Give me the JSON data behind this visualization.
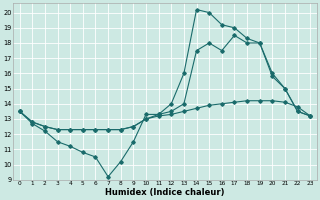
{
  "xlabel": "Humidex (Indice chaleur)",
  "xlim": [
    -0.5,
    23.5
  ],
  "ylim": [
    9,
    20.6
  ],
  "yticks": [
    9,
    10,
    11,
    12,
    13,
    14,
    15,
    16,
    17,
    18,
    19,
    20
  ],
  "xticks": [
    0,
    1,
    2,
    3,
    4,
    5,
    6,
    7,
    8,
    9,
    10,
    11,
    12,
    13,
    14,
    15,
    16,
    17,
    18,
    19,
    20,
    21,
    22,
    23
  ],
  "background_color": "#cde9e3",
  "grid_color": "#ffffff",
  "line_color": "#1a6b6b",
  "line1_x": [
    0,
    1,
    2,
    3,
    4,
    5,
    6,
    7,
    8,
    9,
    10,
    11,
    12,
    13,
    14,
    15,
    16,
    17,
    18,
    19,
    20,
    21,
    22,
    23
  ],
  "line1_y": [
    13.5,
    12.7,
    12.2,
    11.5,
    11.2,
    10.8,
    10.5,
    9.2,
    10.2,
    11.5,
    13.3,
    13.3,
    14.0,
    16.0,
    20.2,
    20.0,
    19.2,
    19.0,
    18.3,
    18.0,
    15.8,
    15.0,
    13.5,
    13.2
  ],
  "line2_x": [
    0,
    1,
    2,
    3,
    4,
    5,
    6,
    7,
    8,
    9,
    10,
    11,
    12,
    13,
    14,
    15,
    16,
    17,
    18,
    19,
    20,
    21,
    22,
    23
  ],
  "line2_y": [
    13.5,
    12.8,
    12.5,
    12.3,
    12.3,
    12.3,
    12.3,
    12.3,
    12.3,
    12.5,
    13.0,
    13.3,
    13.5,
    14.0,
    17.5,
    18.0,
    17.5,
    18.5,
    18.0,
    18.0,
    16.0,
    15.0,
    13.5,
    13.2
  ],
  "line3_x": [
    0,
    1,
    2,
    3,
    4,
    5,
    6,
    7,
    8,
    9,
    10,
    11,
    12,
    13,
    14,
    15,
    16,
    17,
    18,
    19,
    20,
    21,
    22,
    23
  ],
  "line3_y": [
    13.5,
    12.8,
    12.5,
    12.3,
    12.3,
    12.3,
    12.3,
    12.3,
    12.3,
    12.5,
    13.0,
    13.2,
    13.3,
    13.5,
    13.7,
    13.9,
    14.0,
    14.1,
    14.2,
    14.2,
    14.2,
    14.1,
    13.8,
    13.2
  ],
  "marker_size": 1.8,
  "line_width": 0.8
}
